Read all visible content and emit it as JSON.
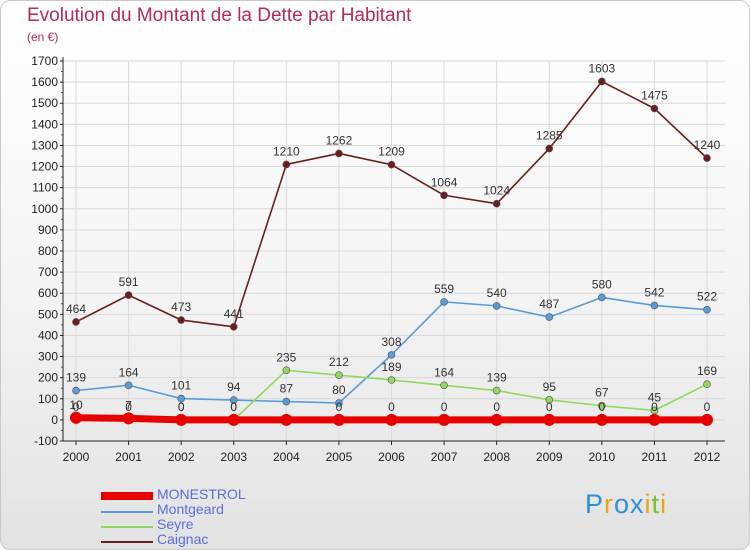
{
  "colors": {
    "title": "#b5285e",
    "grid": "#dadada",
    "axis": "#222222",
    "tick_label": "#222222",
    "data_label": "#333333",
    "legend_text": "#5a6ed8"
  },
  "brand": {
    "text": "Proxiti",
    "letter_colors": [
      "#2b8fd6",
      "#e8a317",
      "#2b8fd6",
      "#2b8fd6",
      "#e8a317",
      "#7cbf2e",
      "#e8a317"
    ]
  },
  "chart_data": {
    "type": "line",
    "title": "Evolution du Montant de la Dette par Habitant",
    "subtitle": "(en €)",
    "xlabel": "",
    "ylabel": "",
    "x": [
      "2000",
      "2001",
      "2002",
      "2003",
      "2004",
      "2005",
      "2006",
      "2007",
      "2008",
      "2009",
      "2010",
      "2011",
      "2012"
    ],
    "ylim": [
      -100,
      1700
    ],
    "yticks": [
      -100,
      0,
      100,
      200,
      300,
      400,
      500,
      600,
      700,
      800,
      900,
      1000,
      1100,
      1200,
      1300,
      1400,
      1500,
      1600,
      1700
    ],
    "grid": true,
    "legend_position": "bottom-left",
    "series": [
      {
        "name": "MONESTROL",
        "color": "#e60000",
        "style": "thick",
        "values": [
          10,
          7,
          0,
          0,
          0,
          0,
          0,
          0,
          0,
          0,
          0,
          0,
          0
        ],
        "labels": [
          "10",
          "7",
          "0",
          "0",
          "",
          "0",
          "0",
          "0",
          "0",
          "0",
          "0",
          "0",
          "0"
        ]
      },
      {
        "name": "Montgeard",
        "color": "#5b9bd5",
        "style": "thin",
        "values": [
          139,
          164,
          101,
          94,
          87,
          80,
          308,
          559,
          540,
          487,
          580,
          542,
          522
        ],
        "labels": [
          "139",
          "164",
          "101",
          "94",
          "87",
          "80",
          "308",
          "559",
          "540",
          "487",
          "580",
          "542",
          "522"
        ]
      },
      {
        "name": "Seyre",
        "color": "#90d860",
        "style": "thin",
        "values": [
          0,
          0,
          0,
          0,
          235,
          212,
          189,
          164,
          139,
          95,
          67,
          45,
          169
        ],
        "labels": [
          "0",
          "0",
          "0",
          "0",
          "235",
          "212",
          "189",
          "164",
          "139",
          "95",
          "67",
          "45",
          "169"
        ]
      },
      {
        "name": "Caignac",
        "color": "#6b1e1e",
        "style": "thin",
        "values": [
          464,
          591,
          473,
          441,
          1210,
          1262,
          1209,
          1064,
          1024,
          1285,
          1603,
          1475,
          1240
        ],
        "labels": [
          "464",
          "591",
          "473",
          "441",
          "1210",
          "1262",
          "1209",
          "1064",
          "1024",
          "1285",
          "1603",
          "1475",
          "1240"
        ]
      }
    ]
  }
}
